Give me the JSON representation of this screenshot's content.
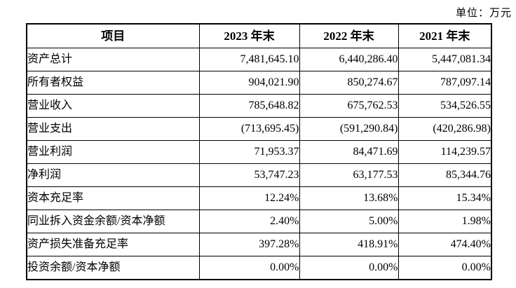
{
  "unit_label": "单位：万元",
  "table": {
    "headers": [
      "项目",
      "2023 年末",
      "2022 年末",
      "2021 年末"
    ],
    "rows": [
      {
        "label": "资产总计",
        "values": [
          "7,481,645.10",
          "6,440,286.40",
          "5,447,081.34"
        ]
      },
      {
        "label": "所有者权益",
        "values": [
          "904,021.90",
          "850,274.67",
          "787,097.14"
        ]
      },
      {
        "label": "营业收入",
        "values": [
          "785,648.82",
          "675,762.53",
          "534,526.55"
        ]
      },
      {
        "label": "营业支出",
        "values": [
          "(713,695.45)",
          "(591,290.84)",
          "(420,286.98)"
        ]
      },
      {
        "label": "营业利润",
        "values": [
          "71,953.37",
          "84,471.69",
          "114,239.57"
        ]
      },
      {
        "label": "净利润",
        "values": [
          "53,747.23",
          "63,177.53",
          "85,344.76"
        ]
      },
      {
        "label": "资本充足率",
        "values": [
          "12.24%",
          "13.68%",
          "15.34%"
        ]
      },
      {
        "label": "同业拆入资金余额/资本净额",
        "values": [
          "2.40%",
          "5.00%",
          "1.98%"
        ]
      },
      {
        "label": "资产损失准备充足率",
        "values": [
          "397.28%",
          "418.91%",
          "474.40%"
        ]
      },
      {
        "label": "投资余额/资本净额",
        "values": [
          "0.00%",
          "0.00%",
          "0.00%"
        ]
      }
    ]
  }
}
